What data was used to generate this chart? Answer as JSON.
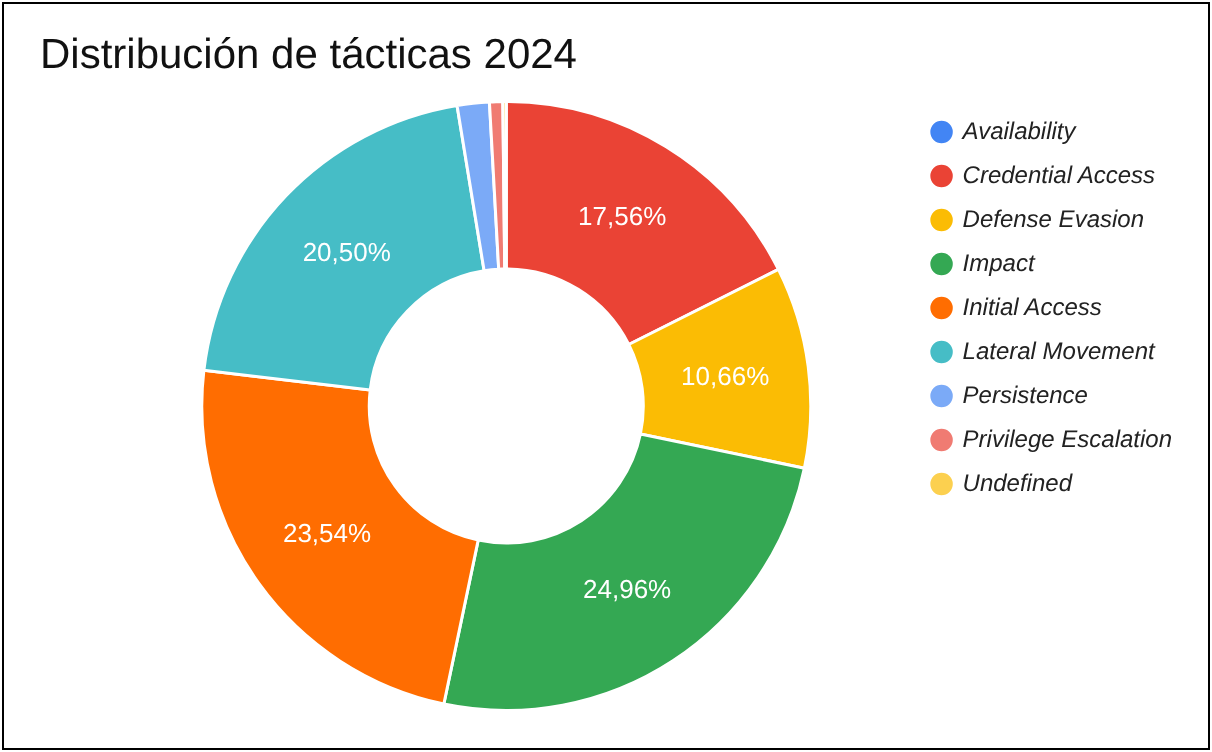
{
  "chart_data": {
    "type": "donut",
    "title": "Distribución de tácticas 2024",
    "categories": [
      "Availability",
      "Credential Access",
      "Defense Evasion",
      "Impact",
      "Initial Access",
      "Lateral Movement",
      "Persistence",
      "Privilege Escalation",
      "Undefined"
    ],
    "values": [
      null,
      17.56,
      10.66,
      24.96,
      23.54,
      20.5,
      1.7,
      0.7,
      0.18
    ],
    "colors": [
      "#4285f4",
      "#ea4335",
      "#fbbc04",
      "#34a853",
      "#ff6d01",
      "#46bdc6",
      "#7baaf7",
      "#f07b72",
      "#fcd04f"
    ],
    "value_labels": [
      null,
      "17,56%",
      "10,66%",
      "24,96%",
      "23,54%",
      "20,50%",
      null,
      null,
      null
    ],
    "legend": "right"
  }
}
